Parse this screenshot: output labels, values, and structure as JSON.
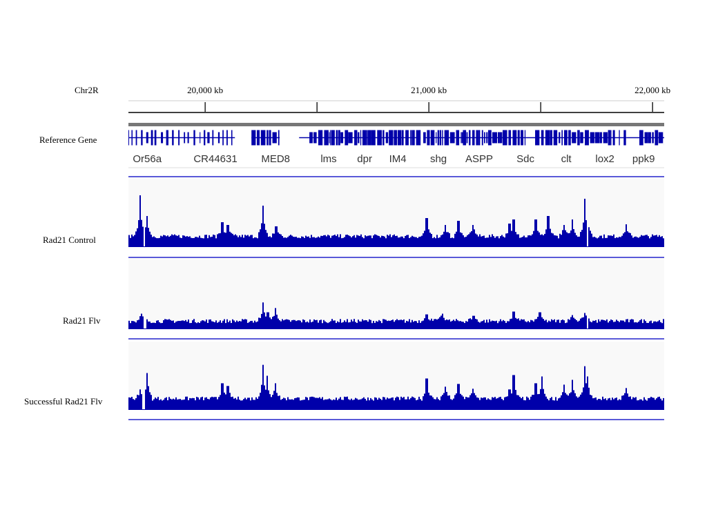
{
  "chart_data": {
    "type": "bar",
    "chromosome": "Chr2R",
    "x_unit": "kb",
    "xlim_kb": [
      19657,
      22052
    ],
    "ruler_ticks": [
      {
        "kb": 20000,
        "label": "20,000 kb"
      },
      {
        "kb": 20500,
        "label": ""
      },
      {
        "kb": 21000,
        "label": "21,000 kb"
      },
      {
        "kb": 21500,
        "label": ""
      },
      {
        "kb": 22000,
        "label": "22,000 kb"
      }
    ],
    "gene_track": {
      "name": "Reference Gene",
      "genes": [
        {
          "name": "Or56a",
          "kb": 19741
        },
        {
          "name": "CR44631",
          "kb": 20046
        },
        {
          "name": "MED8",
          "kb": 20315
        },
        {
          "name": "lms",
          "kb": 20552
        },
        {
          "name": "dpr",
          "kb": 20713
        },
        {
          "name": "IM4",
          "kb": 20861
        },
        {
          "name": "shg",
          "kb": 21043
        },
        {
          "name": "ASPP",
          "kb": 21225
        },
        {
          "name": "Sdc",
          "kb": 21432
        },
        {
          "name": "clt",
          "kb": 21614
        },
        {
          "name": "lox2",
          "kb": 21787
        },
        {
          "name": "ppk9",
          "kb": 21960
        }
      ],
      "regions": [
        {
          "start": 19657,
          "end": 20133,
          "type": "sparse"
        },
        {
          "start": 20207,
          "end": 20333,
          "type": "dense"
        },
        {
          "start": 20420,
          "end": 20466,
          "type": "intron"
        },
        {
          "start": 20466,
          "end": 20963,
          "type": "dense"
        },
        {
          "start": 20975,
          "end": 21432,
          "type": "dense"
        },
        {
          "start": 21432,
          "end": 21475,
          "type": "intron"
        },
        {
          "start": 21475,
          "end": 21812,
          "type": "dense"
        },
        {
          "start": 21812,
          "end": 21883,
          "type": "sparse"
        },
        {
          "start": 21883,
          "end": 21941,
          "type": "intron"
        },
        {
          "start": 21941,
          "end": 22052,
          "type": "dense"
        }
      ]
    },
    "tracks": [
      {
        "name": "Rad21 Control",
        "baseline": 15,
        "ylim": [
          0,
          100
        ],
        "dips_kb": [
          19725,
          21710
        ],
        "peaks": [
          [
            19710,
            75
          ],
          [
            19741,
            45
          ],
          [
            20077,
            36
          ],
          [
            20102,
            32
          ],
          [
            20259,
            60
          ],
          [
            20318,
            30
          ],
          [
            20991,
            42
          ],
          [
            21074,
            32
          ],
          [
            21133,
            38
          ],
          [
            21198,
            32
          ],
          [
            21361,
            34
          ],
          [
            21380,
            40
          ],
          [
            21478,
            40
          ],
          [
            21534,
            45
          ],
          [
            21605,
            32
          ],
          [
            21642,
            40
          ],
          [
            21698,
            70
          ],
          [
            21710,
            48
          ],
          [
            21883,
            33
          ]
        ]
      },
      {
        "name": "Rad21 Flv",
        "baseline": 11,
        "ylim": [
          0,
          100
        ],
        "dips_kb": [
          19725,
          19735,
          21710
        ],
        "peaks": [
          [
            19715,
            22
          ],
          [
            20259,
            38
          ],
          [
            20280,
            24
          ],
          [
            20314,
            30
          ],
          [
            20991,
            21
          ],
          [
            21060,
            22
          ],
          [
            21200,
            19
          ],
          [
            21380,
            25
          ],
          [
            21495,
            24
          ],
          [
            21698,
            23
          ],
          [
            21640,
            20
          ]
        ]
      },
      {
        "name": "Successful Rad21 Flv",
        "baseline": 16,
        "ylim": [
          0,
          100
        ],
        "dips_kb": [
          19722,
          19730
        ],
        "peaks": [
          [
            19710,
            30
          ],
          [
            19741,
            54
          ],
          [
            20077,
            39
          ],
          [
            20102,
            35
          ],
          [
            20259,
            66
          ],
          [
            20277,
            50
          ],
          [
            20314,
            39
          ],
          [
            20991,
            46
          ],
          [
            21074,
            34
          ],
          [
            21133,
            38
          ],
          [
            21198,
            31
          ],
          [
            21361,
            30
          ],
          [
            21380,
            51
          ],
          [
            21478,
            39
          ],
          [
            21506,
            49
          ],
          [
            21605,
            37
          ],
          [
            21642,
            44
          ],
          [
            21698,
            64
          ],
          [
            21710,
            49
          ],
          [
            21883,
            32
          ]
        ]
      }
    ]
  },
  "colors": {
    "signal": "#0000aa",
    "track_bg": "#f9f9f9",
    "separator": "#2222cc",
    "ruler": "#000000",
    "gray_bar": "#777777"
  }
}
